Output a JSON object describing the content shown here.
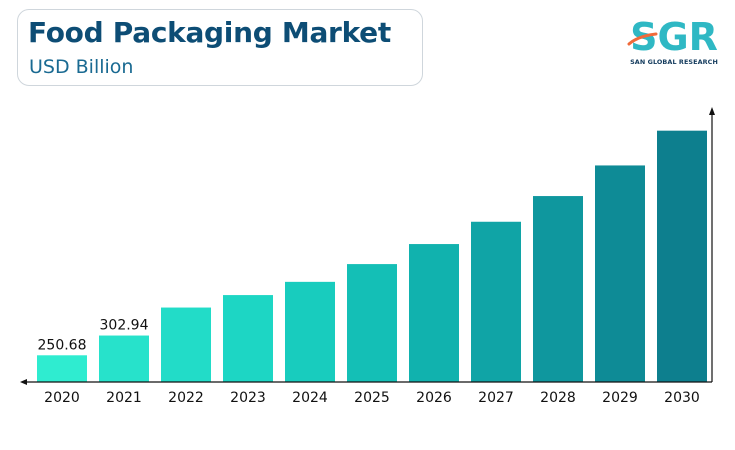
{
  "header": {
    "title": "Food Packaging Market",
    "subtitle": "USD Billion"
  },
  "logo": {
    "text": "SGR",
    "tagline": "SAN GLOBAL RESEARCH",
    "colors": {
      "primary": "#2fb8c4",
      "accent": "#f06a3a"
    }
  },
  "chart_data": {
    "type": "bar",
    "title": "Food Packaging Market",
    "subtitle": "USD Billion",
    "categories": [
      "2020",
      "2021",
      "2022",
      "2023",
      "2024",
      "2025",
      "2026",
      "2027",
      "2028",
      "2029",
      "2030"
    ],
    "values": [
      250.68,
      302.94,
      377,
      410,
      445,
      492,
      545,
      604,
      672,
      753,
      845
    ],
    "data_labels": [
      "250.68",
      "302.94",
      "",
      "",
      "",
      "",
      "",
      "",
      "",
      "",
      ""
    ],
    "ylim": [
      180,
      905
    ],
    "grid": false,
    "legend": "none",
    "colors": [
      "#2fecd0",
      "#27e2cb",
      "#22dcc8",
      "#1dd6c4",
      "#18ccbe",
      "#14bfb6",
      "#11b2ae",
      "#10a4a6",
      "#0f979e",
      "#0e8b96",
      "#0d7f8e"
    ]
  }
}
